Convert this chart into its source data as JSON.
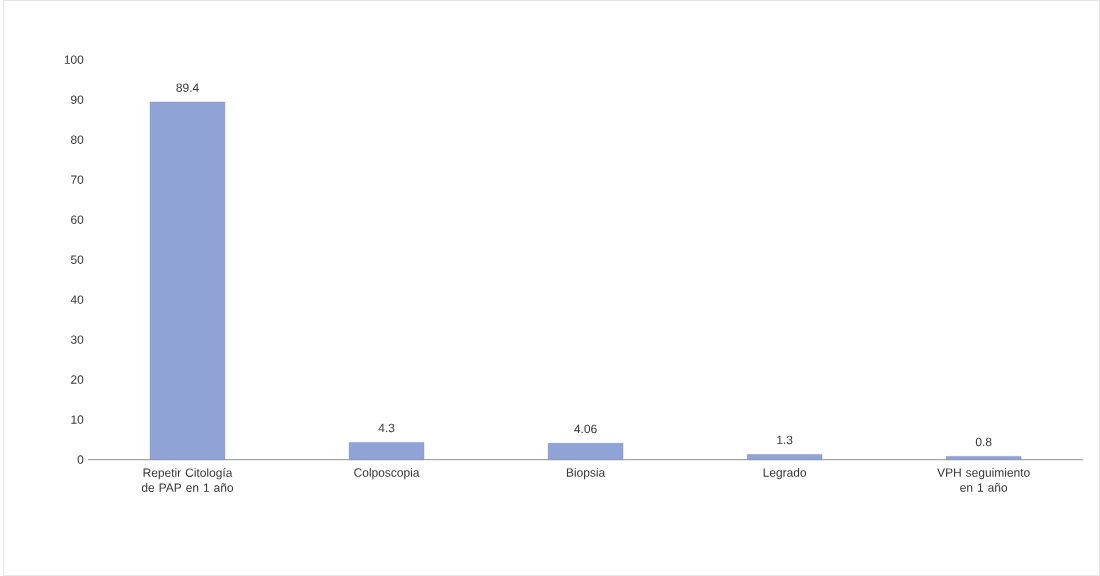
{
  "chart_data": {
    "type": "bar",
    "categories": [
      "Repetir Citología de PAP en 1 año",
      "Colposcopia",
      "Biopsia",
      "Legrado",
      "VPH seguimiento en 1 año"
    ],
    "values": [
      89.4,
      4.3,
      4.06,
      1.3,
      0.8
    ],
    "color": "#8fa3d6",
    "ylim": [
      0,
      100
    ],
    "yticks": [
      0,
      10,
      20,
      30,
      40,
      50,
      60,
      70,
      80,
      90,
      100
    ],
    "data_labels": true
  }
}
